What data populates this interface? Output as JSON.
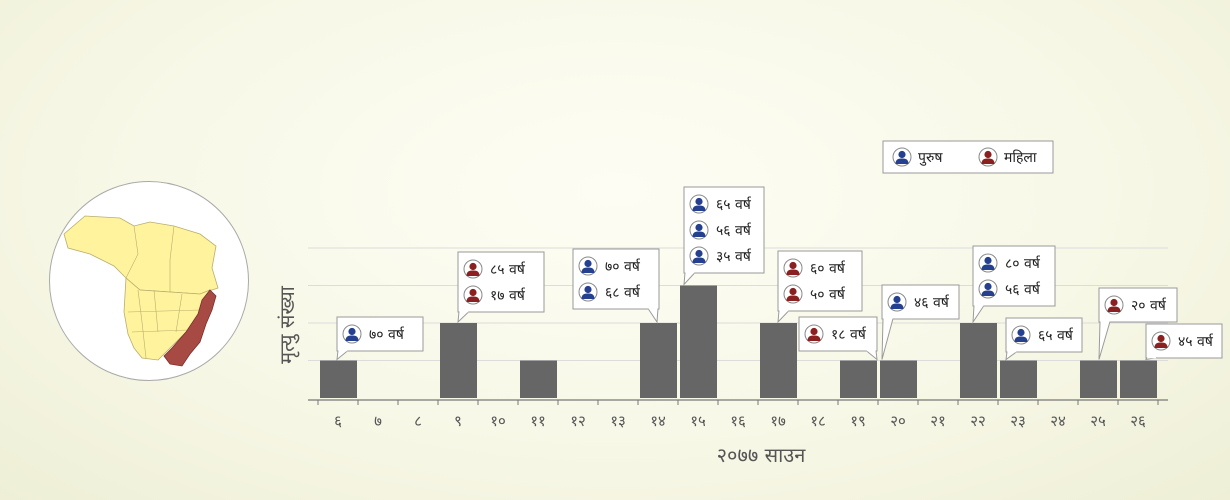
{
  "colors": {
    "bar": "#666666",
    "male": "#24408f",
    "female": "#8b2020",
    "map_region": "#fff39e",
    "map_highlight": "#a84a44",
    "grid": "#dcdcdc"
  },
  "legend": {
    "male_label": "पुरुष",
    "female_label": "महिला",
    "male_icon": "male-person-icon",
    "female_icon": "female-person-icon"
  },
  "map": {
    "icon": "district-map-icon"
  },
  "chart_data": {
    "type": "bar",
    "xlabel": "२०७७ साउन",
    "ylabel": "मृत्यु संख्या",
    "categories": [
      "६",
      "७",
      "८",
      "९",
      "१०",
      "११",
      "१२",
      "१३",
      "१४",
      "१५",
      "१६",
      "१७",
      "१८",
      "१९",
      "२०",
      "२१",
      "२२",
      "२३",
      "२४",
      "२५",
      "२६"
    ],
    "values": [
      1,
      0,
      0,
      2,
      0,
      1,
      0,
      0,
      2,
      3,
      0,
      2,
      0,
      1,
      1,
      0,
      2,
      1,
      0,
      1,
      1
    ],
    "ylim": [
      0,
      4
    ],
    "grid": true,
    "legend_position": "top-right",
    "annotations": [
      {
        "category": "६",
        "entries": [
          {
            "sex": "male",
            "label": "७० वर्ष"
          }
        ]
      },
      {
        "category": "९",
        "entries": [
          {
            "sex": "female",
            "label": "८५ वर्ष"
          },
          {
            "sex": "female",
            "label": "१७ वर्ष"
          }
        ]
      },
      {
        "category": "१४",
        "entries": [
          {
            "sex": "male",
            "label": "७० वर्ष"
          },
          {
            "sex": "male",
            "label": "६८ वर्ष"
          }
        ]
      },
      {
        "category": "१५",
        "entries": [
          {
            "sex": "male",
            "label": "६५ वर्ष"
          },
          {
            "sex": "male",
            "label": "५६ वर्ष"
          },
          {
            "sex": "male",
            "label": "३५ वर्ष"
          }
        ]
      },
      {
        "category": "१७",
        "entries": [
          {
            "sex": "female",
            "label": "६० वर्ष"
          },
          {
            "sex": "female",
            "label": "५० वर्ष"
          }
        ]
      },
      {
        "category": "१९",
        "entries": [
          {
            "sex": "female",
            "label": "१८ वर्ष"
          }
        ]
      },
      {
        "category": "२०",
        "entries": [
          {
            "sex": "male",
            "label": "४६ वर्ष"
          }
        ]
      },
      {
        "category": "२२",
        "entries": [
          {
            "sex": "male",
            "label": "८० वर्ष"
          },
          {
            "sex": "male",
            "label": "५६ वर्ष"
          }
        ]
      },
      {
        "category": "२३",
        "entries": [
          {
            "sex": "male",
            "label": "६५ वर्ष"
          }
        ]
      },
      {
        "category": "२५",
        "entries": [
          {
            "sex": "female",
            "label": "२० वर्ष"
          }
        ]
      },
      {
        "category": "२६",
        "entries": [
          {
            "sex": "female",
            "label": "४५ वर्ष"
          }
        ]
      }
    ]
  }
}
